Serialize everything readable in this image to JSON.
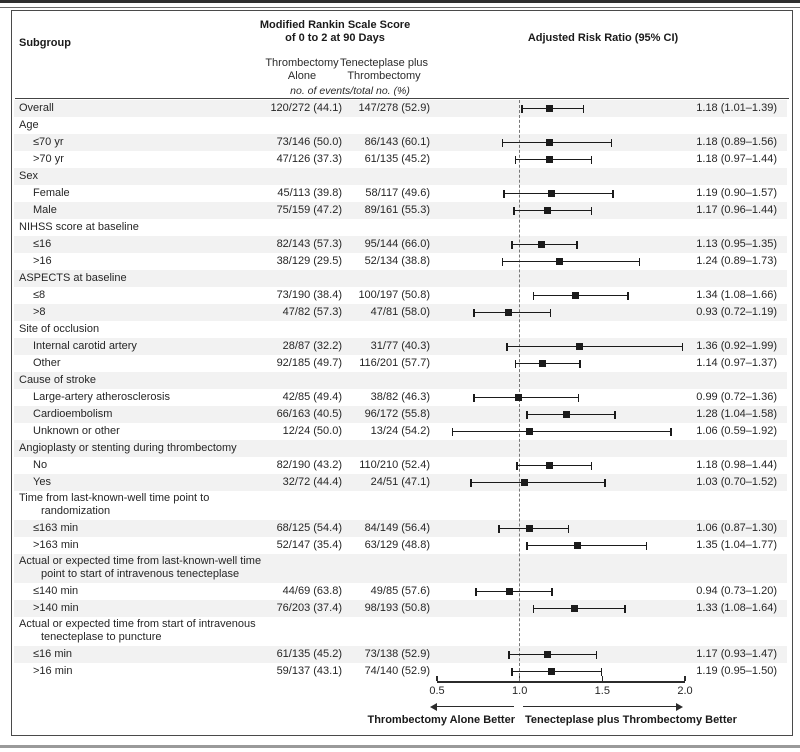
{
  "chart_data": {
    "type": "forest",
    "title": "Modified Rankin Scale Score of 0 to 2 at 90 Days",
    "x_axis": {
      "scale": "linear",
      "min": 0.5,
      "max": 2.0,
      "tick_values": [
        0.5,
        1.0,
        1.5,
        2.0
      ],
      "tick_labels": [
        "0.5",
        "1.0",
        "1.5",
        "2.0"
      ],
      "reference_line": 1.0
    },
    "direction_labels": {
      "left": "Thrombectomy Alone Better",
      "right": "Tenecteplase plus Thrombectomy Better"
    },
    "rows": [
      {
        "kind": "data",
        "label": "Overall",
        "indent": 0,
        "alone": "120/272 (44.1)",
        "tnk": "147/278 (52.9)",
        "rr": "1.18 (1.01–1.39)",
        "est": 1.18,
        "lo": 1.01,
        "hi": 1.39,
        "shaded": true
      },
      {
        "kind": "section",
        "label": "Age",
        "shaded": false
      },
      {
        "kind": "data",
        "label": "≤70 yr",
        "indent": 1,
        "alone": "73/146 (50.0)",
        "tnk": "86/143 (60.1)",
        "rr": "1.18 (0.89–1.56)",
        "est": 1.18,
        "lo": 0.89,
        "hi": 1.56,
        "shaded": true
      },
      {
        "kind": "data",
        "label": ">70 yr",
        "indent": 1,
        "alone": "47/126 (37.3)",
        "tnk": "61/135 (45.2)",
        "rr": "1.18 (0.97–1.44)",
        "est": 1.18,
        "lo": 0.97,
        "hi": 1.44,
        "shaded": false
      },
      {
        "kind": "section",
        "label": "Sex",
        "shaded": true
      },
      {
        "kind": "data",
        "label": "Female",
        "indent": 1,
        "alone": "45/113 (39.8)",
        "tnk": "58/117 (49.6)",
        "rr": "1.19 (0.90–1.57)",
        "est": 1.19,
        "lo": 0.9,
        "hi": 1.57,
        "shaded": false
      },
      {
        "kind": "data",
        "label": "Male",
        "indent": 1,
        "alone": "75/159 (47.2)",
        "tnk": "89/161 (55.3)",
        "rr": "1.17 (0.96–1.44)",
        "est": 1.17,
        "lo": 0.96,
        "hi": 1.44,
        "shaded": true
      },
      {
        "kind": "section",
        "label": "NIHSS score at baseline",
        "shaded": false
      },
      {
        "kind": "data",
        "label": "≤16",
        "indent": 1,
        "alone": "82/143 (57.3)",
        "tnk": "95/144 (66.0)",
        "rr": "1.13 (0.95–1.35)",
        "est": 1.13,
        "lo": 0.95,
        "hi": 1.35,
        "shaded": true
      },
      {
        "kind": "data",
        "label": ">16",
        "indent": 1,
        "alone": "38/129 (29.5)",
        "tnk": "52/134 (38.8)",
        "rr": "1.24 (0.89–1.73)",
        "est": 1.24,
        "lo": 0.89,
        "hi": 1.73,
        "shaded": false
      },
      {
        "kind": "section",
        "label": "ASPECTS at baseline",
        "shaded": true
      },
      {
        "kind": "data",
        "label": "≤8",
        "indent": 1,
        "alone": "73/190 (38.4)",
        "tnk": "100/197 (50.8)",
        "rr": "1.34 (1.08–1.66)",
        "est": 1.34,
        "lo": 1.08,
        "hi": 1.66,
        "shaded": false
      },
      {
        "kind": "data",
        "label": ">8",
        "indent": 1,
        "alone": "47/82 (57.3)",
        "tnk": "47/81 (58.0)",
        "rr": "0.93 (0.72–1.19)",
        "est": 0.93,
        "lo": 0.72,
        "hi": 1.19,
        "shaded": true
      },
      {
        "kind": "section",
        "label": "Site of occlusion",
        "shaded": false
      },
      {
        "kind": "data",
        "label": "Internal carotid artery",
        "indent": 1,
        "alone": "28/87 (32.2)",
        "tnk": "31/77 (40.3)",
        "rr": "1.36 (0.92–1.99)",
        "est": 1.36,
        "lo": 0.92,
        "hi": 1.99,
        "shaded": true
      },
      {
        "kind": "data",
        "label": "Other",
        "indent": 1,
        "alone": "92/185 (49.7)",
        "tnk": "116/201 (57.7)",
        "rr": "1.14 (0.97–1.37)",
        "est": 1.14,
        "lo": 0.97,
        "hi": 1.37,
        "shaded": false
      },
      {
        "kind": "section",
        "label": "Cause of stroke",
        "shaded": true
      },
      {
        "kind": "data",
        "label": "Large-artery atherosclerosis",
        "indent": 1,
        "alone": "42/85 (49.4)",
        "tnk": "38/82 (46.3)",
        "rr": "0.99 (0.72–1.36)",
        "est": 0.99,
        "lo": 0.72,
        "hi": 1.36,
        "shaded": false
      },
      {
        "kind": "data",
        "label": "Cardioembolism",
        "indent": 1,
        "alone": "66/163 (40.5)",
        "tnk": "96/172 (55.8)",
        "rr": "1.28 (1.04–1.58)",
        "est": 1.28,
        "lo": 1.04,
        "hi": 1.58,
        "shaded": true
      },
      {
        "kind": "data",
        "label": "Unknown or other",
        "indent": 1,
        "alone": "12/24 (50.0)",
        "tnk": "13/24 (54.2)",
        "rr": "1.06 (0.59–1.92)",
        "est": 1.06,
        "lo": 0.59,
        "hi": 1.92,
        "shaded": false
      },
      {
        "kind": "section",
        "label": "Angioplasty or stenting during thrombectomy",
        "shaded": true
      },
      {
        "kind": "data",
        "label": "No",
        "indent": 1,
        "alone": "82/190 (43.2)",
        "tnk": "110/210 (52.4)",
        "rr": "1.18 (0.98–1.44)",
        "est": 1.18,
        "lo": 0.98,
        "hi": 1.44,
        "shaded": false
      },
      {
        "kind": "data",
        "label": "Yes",
        "indent": 1,
        "alone": "32/72 (44.4)",
        "tnk": "24/51 (47.1)",
        "rr": "1.03 (0.70–1.52)",
        "est": 1.03,
        "lo": 0.7,
        "hi": 1.52,
        "shaded": true
      },
      {
        "kind": "section2",
        "label": "Time from last-known-well time point to",
        "label2": "randomization",
        "shaded": false
      },
      {
        "kind": "data",
        "label": "≤163 min",
        "indent": 1,
        "alone": "68/125 (54.4)",
        "tnk": "84/149 (56.4)",
        "rr": "1.06 (0.87–1.30)",
        "est": 1.06,
        "lo": 0.87,
        "hi": 1.3,
        "shaded": true
      },
      {
        "kind": "data",
        "label": ">163 min",
        "indent": 1,
        "alone": "52/147 (35.4)",
        "tnk": "63/129 (48.8)",
        "rr": "1.35 (1.04–1.77)",
        "est": 1.35,
        "lo": 1.04,
        "hi": 1.77,
        "shaded": false
      },
      {
        "kind": "section2",
        "label": "Actual or expected time from last-known-well time",
        "label2": "point to start of intravenous tenecteplase",
        "shaded": true
      },
      {
        "kind": "data",
        "label": "≤140 min",
        "indent": 1,
        "alone": "44/69 (63.8)",
        "tnk": "49/85 (57.6)",
        "rr": "0.94 (0.73–1.20)",
        "est": 0.94,
        "lo": 0.73,
        "hi": 1.2,
        "shaded": false
      },
      {
        "kind": "data",
        "label": ">140 min",
        "indent": 1,
        "alone": "76/203 (37.4)",
        "tnk": "98/193 (50.8)",
        "rr": "1.33 (1.08–1.64)",
        "est": 1.33,
        "lo": 1.08,
        "hi": 1.64,
        "shaded": true
      },
      {
        "kind": "section2",
        "label": "Actual or expected time from start of intravenous",
        "label2": "tenecteplase to puncture",
        "shaded": false
      },
      {
        "kind": "data",
        "label": "≤16 min",
        "indent": 1,
        "alone": "61/135 (45.2)",
        "tnk": "73/138 (52.9)",
        "rr": "1.17 (0.93–1.47)",
        "est": 1.17,
        "lo": 0.93,
        "hi": 1.47,
        "shaded": true
      },
      {
        "kind": "data",
        "label": ">16 min",
        "indent": 1,
        "alone": "59/137 (43.1)",
        "tnk": "74/140 (52.9)",
        "rr": "1.19 (0.95–1.50)",
        "est": 1.19,
        "lo": 0.95,
        "hi": 1.5,
        "shaded": false
      }
    ]
  },
  "figure": {
    "headers": {
      "subgroup": "Subgroup",
      "outcome_line1": "Modified Rankin Scale Score",
      "outcome_line2": "of 0 to 2 at 90 Days",
      "arm1_line1": "Thrombectomy",
      "arm1_line2": "Alone",
      "arm2_line1": "Tenecteplase plus",
      "arm2_line2": "Thrombectomy",
      "events_note": "no. of events/total no. (%)",
      "rr_header": "Adjusted Risk Ratio (95% CI)"
    }
  },
  "colors": {
    "row_shade": "#f2f2f2",
    "ink": "#262626",
    "marker": "#1b1b1b",
    "box_border": "#4a4a4a",
    "ref_dash": "#777777"
  }
}
